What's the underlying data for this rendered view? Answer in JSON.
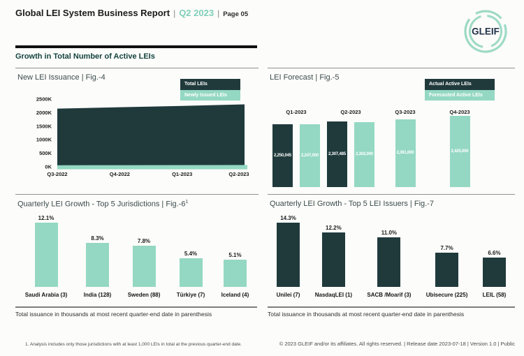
{
  "colors": {
    "dark": "#203a3c",
    "mint": "#94d8c3",
    "accent": "#7fcfb9"
  },
  "header": {
    "title": "Global LEI System Business Report",
    "sep": "|",
    "period": "Q2 2023",
    "page": "Page 05",
    "logo_text": "GLEIF"
  },
  "section_title": "Growth in Total Number of Active LEIs",
  "panels": {
    "issuance": {
      "title": "New LEI Issuance | Fig.-4",
      "legend": [
        {
          "label": "Total LEIs"
        },
        {
          "label": "Newly Issued LEIs"
        }
      ]
    },
    "forecast": {
      "title": "LEI Forecast | Fig.-5",
      "legend": [
        {
          "label": "Actual Active LEIs"
        },
        {
          "label": "Forecasted Active LEIs"
        }
      ]
    },
    "jurisdictions": {
      "title": "Quarterly LEI Growth - Top 5 Jurisdictions | Fig.-6",
      "sup": "1",
      "footer": "Total issuance in thousands at most recent quarter-end date in parenthesis"
    },
    "issuers": {
      "title": "Quarterly LEI Growth - Top 5 LEI Issuers | Fig.-7",
      "footer": "Total issuance in thousands at most recent quarter-end date in parenthesis"
    }
  },
  "chart_data": [
    {
      "id": "new_lei_issuance",
      "type": "area",
      "title": "New LEI Issuance | Fig.-4",
      "x": [
        "Q3-2022",
        "Q4-2022",
        "Q1-2023",
        "Q2-2023"
      ],
      "series": [
        {
          "name": "Total LEIs",
          "values": [
            2150000,
            2200000,
            2250045,
            2307485
          ]
        },
        {
          "name": "Newly Issued LEIs",
          "values": [
            60000,
            62000,
            65000,
            68000
          ]
        }
      ],
      "y_ticks": [
        "0K",
        "500K",
        "1000K",
        "1500K",
        "2000K",
        "2500K"
      ],
      "ylim": [
        0,
        2500000
      ],
      "grid": false,
      "legend_position": "top-right"
    },
    {
      "id": "lei_forecast",
      "type": "bar",
      "title": "LEI Forecast | Fig.-5",
      "categories": [
        "Q1-2023",
        "Q2-2023",
        "Q3-2023",
        "Q4-2023"
      ],
      "series": [
        {
          "name": "Actual Active LEIs",
          "values": [
            2250045,
            2307485,
            null,
            null
          ]
        },
        {
          "name": "Forecasted Active LEIs",
          "values": [
            2247000,
            2302000,
            2361000,
            2425000
          ]
        }
      ],
      "data_labels": [
        "2,250,045",
        "2,247,000",
        "2,307,485",
        "2,302,000",
        "2,361,000",
        "2,425,000"
      ],
      "legend_position": "top-right"
    },
    {
      "id": "top5_jurisdictions",
      "type": "bar",
      "title": "Quarterly LEI Growth - Top 5 Jurisdictions | Fig.-6",
      "categories": [
        "Saudi Arabia (3)",
        "India (128)",
        "Sweden (88)",
        "Türkiye (7)",
        "Iceland (4)"
      ],
      "values": [
        12.1,
        8.3,
        7.8,
        5.4,
        5.1
      ],
      "labels": [
        "12.1%",
        "8.3%",
        "7.8%",
        "5.4%",
        "5.1%"
      ]
    },
    {
      "id": "top5_issuers",
      "type": "bar",
      "title": "Quarterly LEI Growth - Top 5 LEI Issuers | Fig.-7",
      "categories": [
        "Unilei (7)",
        "NasdaqLEI (1)",
        "SACB /Moarif (3)",
        "Ubisecure (225)",
        "LEIL (58)"
      ],
      "values": [
        14.3,
        12.2,
        11.0,
        7.7,
        6.6
      ],
      "labels": [
        "14.3%",
        "12.2%",
        "11.0%",
        "7.7%",
        "6.6%"
      ]
    }
  ],
  "footnote": "1. Analysis includes only those jurisdictions with at least 1,000 LEIs in total at the previous quarter-end date.",
  "copyright": "© 2023 GLEIF and/or its affiliates. All rights reserved. | Release date 2023-07-18 | Version 1.0 | Public"
}
